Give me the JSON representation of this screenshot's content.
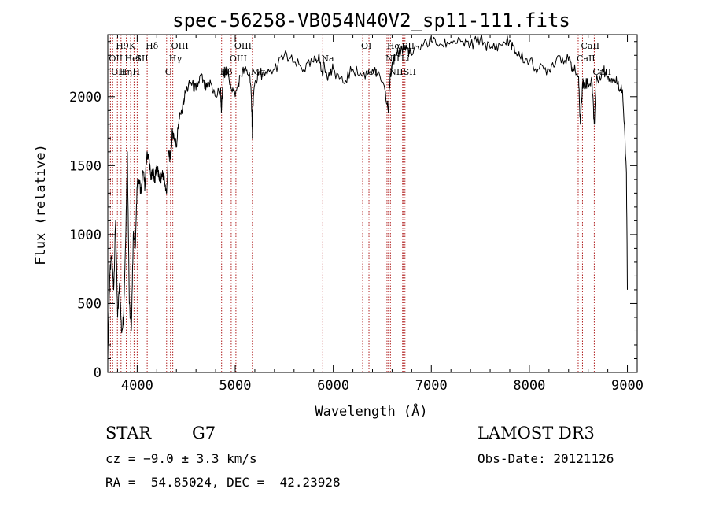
{
  "chart_data": {
    "type": "line",
    "title": "spec-56258-VB054N40V2_sp11-111.fits",
    "xlabel": "Wavelength (Å)",
    "ylabel": "Flux (relative)",
    "xlim": [
      3700,
      9100
    ],
    "ylim": [
      0,
      2450
    ],
    "xticks": [
      4000,
      5000,
      6000,
      7000,
      8000,
      9000
    ],
    "yticks": [
      0,
      500,
      1000,
      1500,
      2000
    ],
    "grid": false,
    "series": [
      {
        "x": [
          3700,
          3720,
          3740,
          3760,
          3780,
          3800,
          3820,
          3840,
          3860,
          3880,
          3900,
          3920,
          3940,
          3960,
          3980,
          4000,
          4020,
          4040,
          4060,
          4080,
          4100,
          4120,
          4140,
          4160,
          4180,
          4200,
          4220,
          4240,
          4260,
          4280,
          4300,
          4320,
          4340,
          4360,
          4380,
          4400,
          4420,
          4450,
          4500,
          4550,
          4600,
          4650,
          4700,
          4750,
          4800,
          4850,
          4860,
          4880,
          4900,
          4950,
          5000,
          5050,
          5100,
          5150,
          5170,
          5175,
          5180,
          5200,
          5250,
          5300,
          5400,
          5500,
          5600,
          5700,
          5800,
          5850,
          5890,
          5900,
          5950,
          6000,
          6100,
          6200,
          6300,
          6400,
          6500,
          6550,
          6563,
          6580,
          6600,
          6650,
          6700,
          6750,
          6800,
          6900,
          7000,
          7100,
          7200,
          7300,
          7400,
          7500,
          7600,
          7700,
          7800,
          7850,
          7900,
          8000,
          8100,
          8200,
          8300,
          8400,
          8450,
          8500,
          8520,
          8542,
          8560,
          8600,
          8640,
          8662,
          8680,
          8750,
          8800,
          8850,
          8900,
          8950,
          8990,
          9000
        ],
        "y": [
          100,
          700,
          850,
          600,
          1100,
          400,
          650,
          300,
          400,
          900,
          1600,
          500,
          300,
          1000,
          900,
          1350,
          1400,
          1300,
          1450,
          1350,
          1600,
          1550,
          1400,
          1450,
          1400,
          1500,
          1420,
          1400,
          1450,
          1380,
          1300,
          1600,
          1550,
          1750,
          1700,
          1650,
          1800,
          1900,
          2050,
          2100,
          2050,
          2150,
          2050,
          2100,
          2000,
          2050,
          1900,
          2150,
          2200,
          2100,
          2000,
          2150,
          2200,
          2150,
          1900,
          1700,
          1950,
          2100,
          2180,
          2150,
          2200,
          2300,
          2250,
          2200,
          2250,
          2300,
          2150,
          2250,
          2150,
          2200,
          2100,
          2200,
          2150,
          2200,
          2100,
          1950,
          1900,
          2150,
          2250,
          2300,
          2350,
          2350,
          2300,
          2380,
          2400,
          2380,
          2400,
          2400,
          2370,
          2420,
          2350,
          2380,
          2410,
          2330,
          2300,
          2250,
          2200,
          2200,
          2300,
          2260,
          2200,
          2150,
          1800,
          2100,
          2100,
          2100,
          2100,
          1800,
          2100,
          2200,
          2150,
          2130,
          2100,
          2050,
          1450,
          600
        ]
      }
    ],
    "line_markers": [
      {
        "wavelength": 3727,
        "label": "OII",
        "row": 2
      },
      {
        "wavelength": 3750,
        "label": "OII",
        "row": 3
      },
      {
        "wavelength": 3798,
        "label": "H9",
        "row": 1
      },
      {
        "wavelength": 3835,
        "label": "Hη",
        "row": 3
      },
      {
        "wavelength": 3889,
        "label": "HeI",
        "row": 2
      },
      {
        "wavelength": 3933,
        "label": "K",
        "row": 1
      },
      {
        "wavelength": 3968,
        "label": "H",
        "row": 3
      },
      {
        "wavelength": 4000,
        "label": "SII",
        "row": 2
      },
      {
        "wavelength": 4102,
        "label": "Hδ",
        "row": 1
      },
      {
        "wavelength": 4300,
        "label": "G",
        "row": 3
      },
      {
        "wavelength": 4340,
        "label": "Hγ",
        "row": 2
      },
      {
        "wavelength": 4363,
        "label": "OIII",
        "row": 1
      },
      {
        "wavelength": 4861,
        "label": "Hβ",
        "row": 3
      },
      {
        "wavelength": 4959,
        "label": "OIII",
        "row": 2
      },
      {
        "wavelength": 5007,
        "label": "OIII",
        "row": 1
      },
      {
        "wavelength": 5175,
        "label": "Mg",
        "row": 3
      },
      {
        "wavelength": 5893,
        "label": "Na",
        "row": 2
      },
      {
        "wavelength": 6300,
        "label": "OI",
        "row": 1
      },
      {
        "wavelength": 6364,
        "label": "OI",
        "row": 3
      },
      {
        "wavelength": 6548,
        "label": "NII",
        "row": 2
      },
      {
        "wavelength": 6563,
        "label": "Hα",
        "row": 1
      },
      {
        "wavelength": 6583,
        "label": "NII",
        "row": 3
      },
      {
        "wavelength": 6707,
        "label": "Li",
        "row": 2
      },
      {
        "wavelength": 6716,
        "label": "SII",
        "row": 1
      },
      {
        "wavelength": 6731,
        "label": "SII",
        "row": 3
      },
      {
        "wavelength": 8498,
        "label": "CaII",
        "row": 2
      },
      {
        "wavelength": 8542,
        "label": "CaII",
        "row": 1
      },
      {
        "wavelength": 8662,
        "label": "CaII",
        "row": 3
      }
    ],
    "colors": {
      "spectrum": "#000000",
      "markers": "#b02020",
      "marker_labels": "#000000"
    }
  },
  "info": {
    "object_class": "STAR",
    "subclass": "G7",
    "survey": "LAMOST DR3",
    "velocity": "cz = −9.0 ± 3.3 km/s",
    "obs_date": "Obs-Date: 20121126",
    "coords": "RA =  54.85024, DEC =  42.23928"
  }
}
